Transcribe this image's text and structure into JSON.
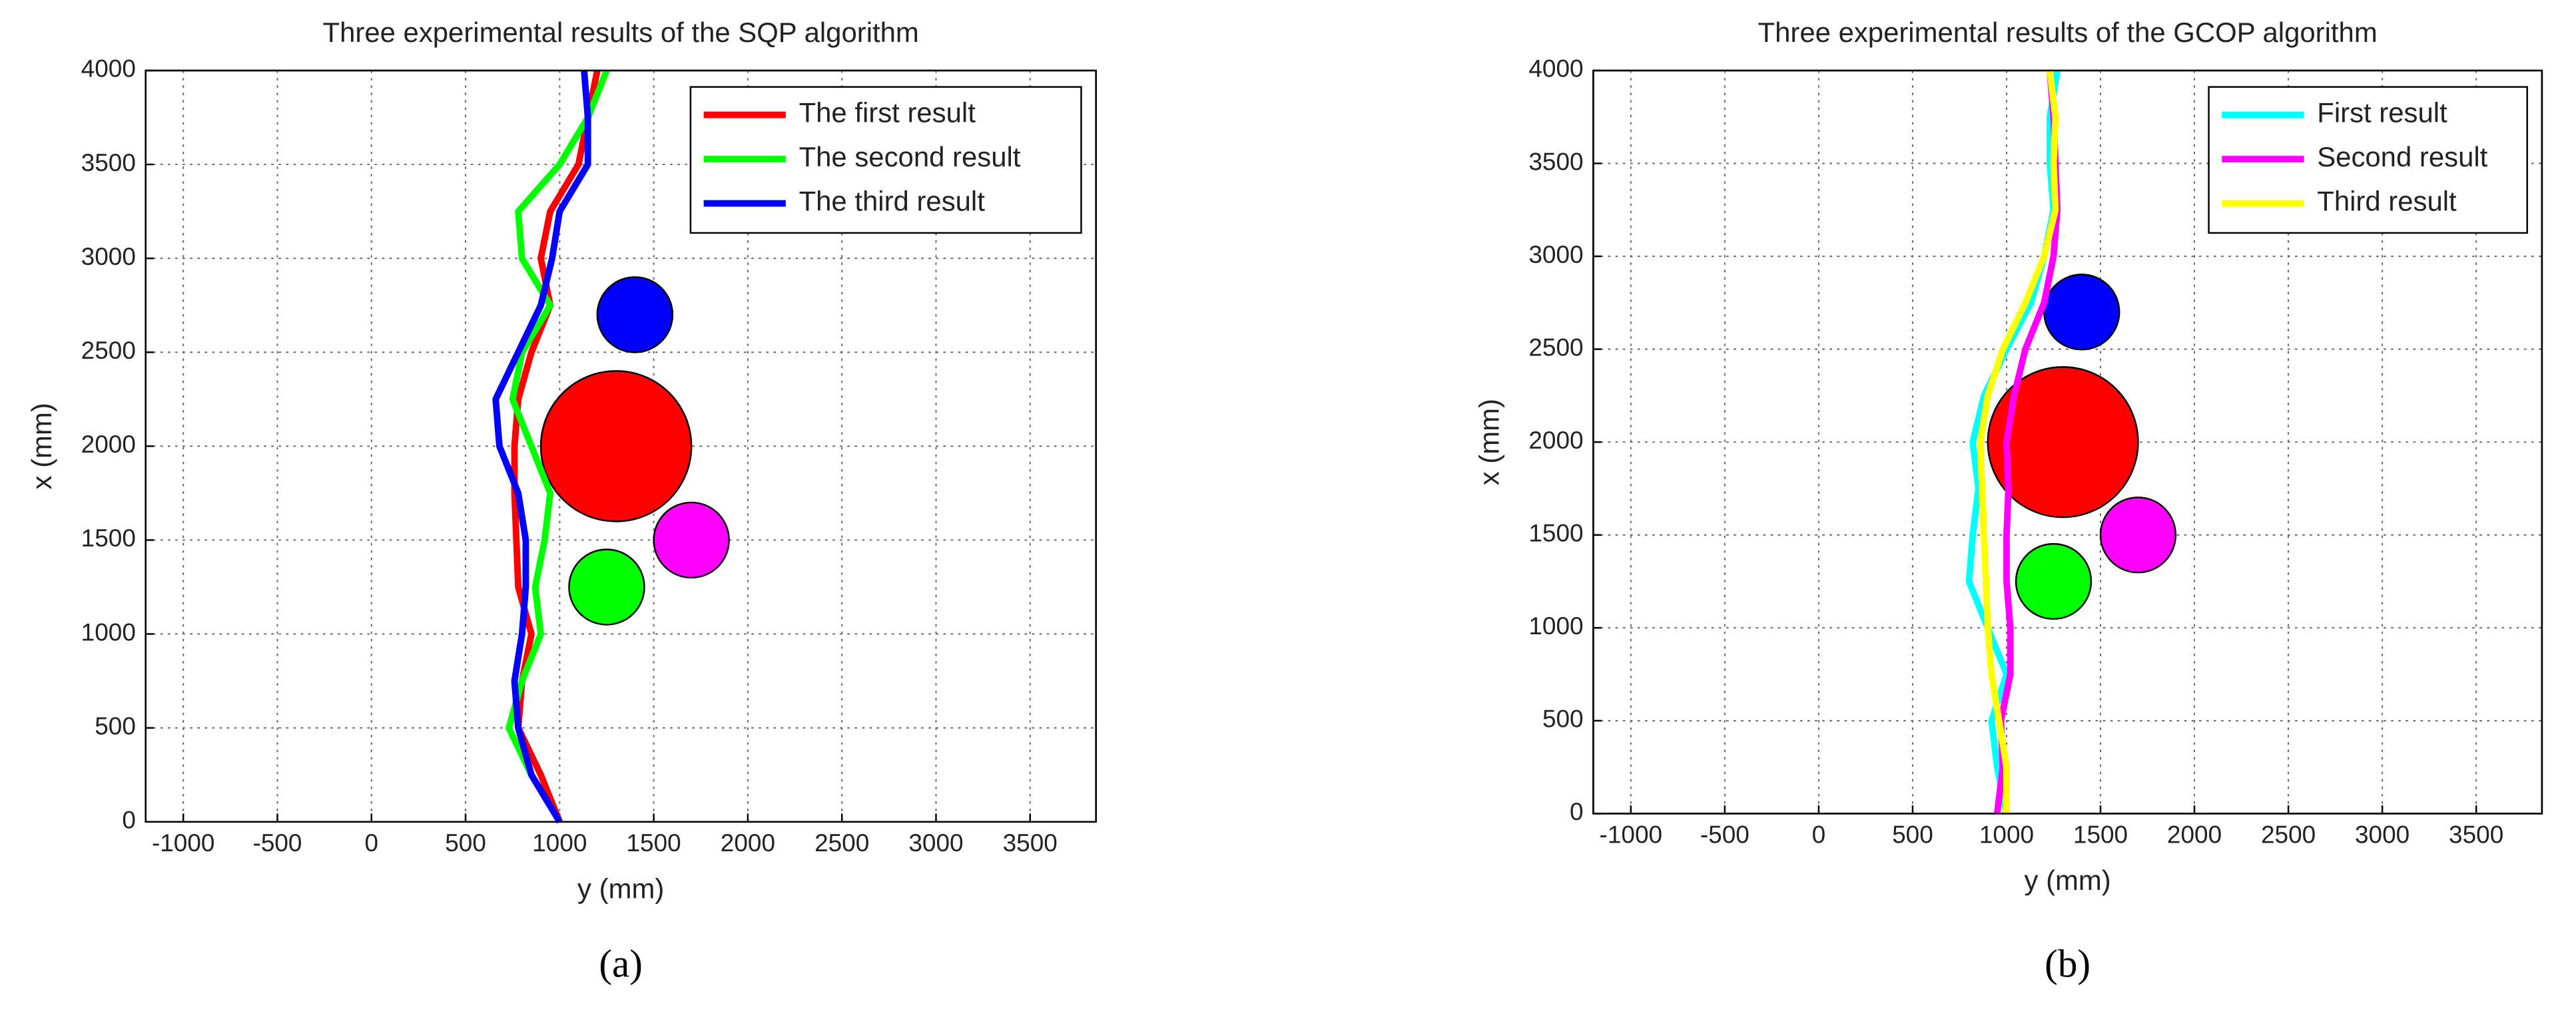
{
  "chart_data": [
    {
      "type": "line",
      "title": "Three experimental results of the SQP algorithm",
      "xlabel": "y (mm)",
      "ylabel": "x (mm)",
      "caption": "(a)",
      "xlim": [
        -1200,
        3850
      ],
      "ylim": [
        0,
        4000
      ],
      "xticks": [
        -1000,
        -500,
        0,
        500,
        1000,
        1500,
        2000,
        2500,
        3000,
        3500
      ],
      "yticks": [
        0,
        500,
        1000,
        1500,
        2000,
        2500,
        3000,
        3500,
        4000
      ],
      "grid": true,
      "legend": "upper right",
      "series": [
        {
          "name": "The first result",
          "color": "#ff0000",
          "x": [
            1000,
            900,
            780,
            800,
            850,
            780,
            770,
            760,
            760,
            780,
            850,
            950,
            900,
            950,
            1100,
            1150,
            1200
          ],
          "values": [
            0,
            250,
            500,
            750,
            1000,
            1250,
            1500,
            1750,
            2000,
            2250,
            2500,
            2750,
            3000,
            3250,
            3500,
            3750,
            4000
          ]
        },
        {
          "name": "The second result",
          "color": "#00ff00",
          "x": [
            1000,
            850,
            730,
            800,
            900,
            870,
            920,
            950,
            850,
            750,
            800,
            950,
            800,
            780,
            1000,
            1150,
            1250
          ],
          "values": [
            0,
            250,
            500,
            750,
            1000,
            1250,
            1500,
            1750,
            2000,
            2250,
            2500,
            2750,
            3000,
            3250,
            3500,
            3750,
            4000
          ]
        },
        {
          "name": "The third result",
          "color": "#0000ff",
          "x": [
            1000,
            850,
            780,
            760,
            800,
            820,
            820,
            780,
            680,
            660,
            780,
            900,
            960,
            1000,
            1150,
            1150,
            1130
          ],
          "values": [
            0,
            250,
            500,
            750,
            1000,
            1250,
            1500,
            1750,
            2000,
            2250,
            2500,
            2750,
            3000,
            3250,
            3500,
            3750,
            4000
          ]
        }
      ],
      "circles": [
        {
          "x": 1300,
          "y": 2000,
          "r": 400,
          "color": "#ff0000"
        },
        {
          "x": 1400,
          "y": 2700,
          "r": 200,
          "color": "#0000ff"
        },
        {
          "x": 1700,
          "y": 1500,
          "r": 200,
          "color": "#ff00ff"
        },
        {
          "x": 1250,
          "y": 1250,
          "r": 200,
          "color": "#00ff00"
        }
      ]
    },
    {
      "type": "line",
      "title": "Three experimental results of the GCOP algorithm",
      "xlabel": "y (mm)",
      "ylabel": "x (mm)",
      "caption": "(b)",
      "xlim": [
        -1200,
        3850
      ],
      "ylim": [
        0,
        4000
      ],
      "xticks": [
        -1000,
        -500,
        0,
        500,
        1000,
        1500,
        2000,
        2500,
        3000,
        3500
      ],
      "yticks": [
        0,
        500,
        1000,
        1500,
        2000,
        2500,
        3000,
        3500,
        4000
      ],
      "grid": true,
      "legend": "upper right",
      "series": [
        {
          "name": "First result",
          "color": "#00ffff",
          "x": [
            1000,
            950,
            920,
            1000,
            900,
            800,
            820,
            850,
            820,
            880,
            1000,
            1130,
            1200,
            1250,
            1230,
            1230,
            1270
          ],
          "values": [
            0,
            250,
            500,
            750,
            1000,
            1250,
            1500,
            1750,
            2000,
            2250,
            2500,
            2750,
            3000,
            3250,
            3500,
            3750,
            4000
          ]
        },
        {
          "name": "Second result",
          "color": "#ff00ff",
          "x": [
            950,
            980,
            970,
            1020,
            1020,
            1000,
            1000,
            1010,
            1000,
            1040,
            1100,
            1200,
            1250,
            1270,
            1260,
            1250,
            1230
          ],
          "values": [
            0,
            250,
            500,
            750,
            1000,
            1250,
            1500,
            1750,
            2000,
            2250,
            2500,
            2750,
            3000,
            3250,
            3500,
            3750,
            4000
          ]
        },
        {
          "name": "Third result",
          "color": "#ffff00",
          "x": [
            1000,
            1000,
            960,
            920,
            900,
            890,
            880,
            870,
            860,
            900,
            980,
            1100,
            1200,
            1260,
            1250,
            1260,
            1230
          ],
          "values": [
            0,
            250,
            500,
            750,
            1000,
            1250,
            1500,
            1750,
            2000,
            2250,
            2500,
            2750,
            3000,
            3250,
            3500,
            3750,
            4000
          ]
        }
      ],
      "circles": [
        {
          "x": 1300,
          "y": 2000,
          "r": 400,
          "color": "#ff0000"
        },
        {
          "x": 1400,
          "y": 2700,
          "r": 200,
          "color": "#0000ff"
        },
        {
          "x": 1700,
          "y": 1500,
          "r": 200,
          "color": "#ff00ff"
        },
        {
          "x": 1250,
          "y": 1250,
          "r": 200,
          "color": "#00ff00"
        }
      ]
    }
  ]
}
